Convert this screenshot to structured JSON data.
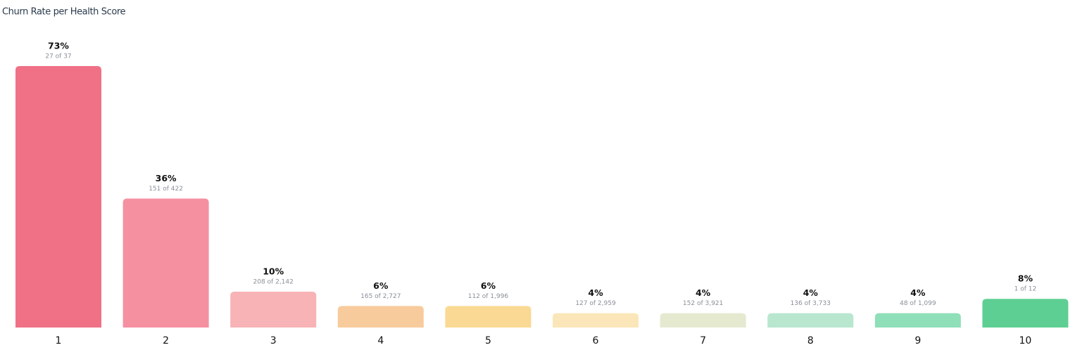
{
  "chart_data": {
    "type": "bar",
    "title": "Churn Rate per Health Score",
    "categories": [
      "1",
      "2",
      "3",
      "4",
      "5",
      "6",
      "7",
      "8",
      "9",
      "10"
    ],
    "values": [
      73,
      36,
      10,
      6,
      6,
      4,
      4,
      4,
      4,
      8
    ],
    "value_labels": [
      "73%",
      "36%",
      "10%",
      "6%",
      "6%",
      "4%",
      "4%",
      "4%",
      "4%",
      "8%"
    ],
    "sublabels": [
      "27 of 37",
      "151 of 422",
      "208 of 2,142",
      "165 of 2,727",
      "112 of 1,996",
      "127 of 2,959",
      "152 of 3,921",
      "136 of 3,733",
      "48 of 1,099",
      "1 of 12"
    ],
    "colors": [
      "#f07085",
      "#f590a0",
      "#f7b3b5",
      "#f8cb9c",
      "#f9d993",
      "#fbe6b9",
      "#e4e9d0",
      "#b9e6cf",
      "#8fdfb9",
      "#5ecf92"
    ]
  }
}
